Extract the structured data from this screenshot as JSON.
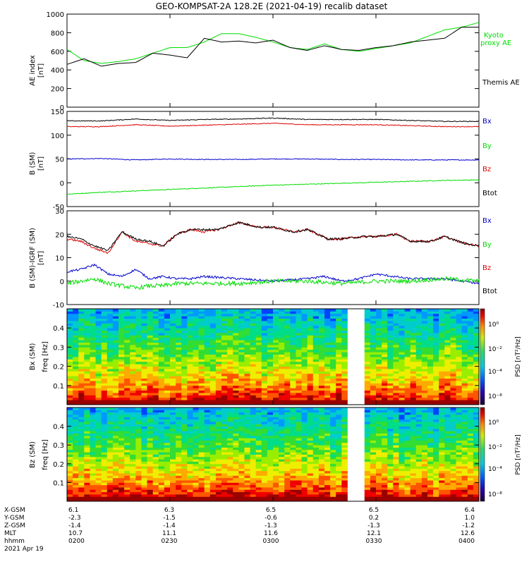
{
  "title": "GEO-KOMPSAT-2A 128.2E (2021-04-19) recalib dataset",
  "colors": {
    "black": "#000000",
    "green": "#00dd00",
    "red": "#dd0000",
    "blue": "#0000cc"
  },
  "chart_data": [
    {
      "type": "line",
      "ylabel": "AE index [nT]",
      "ylim": [
        0,
        1000
      ],
      "yticks": [
        0,
        200,
        400,
        600,
        800,
        1000
      ],
      "xlim_minutes": [
        0,
        120
      ],
      "series": [
        {
          "name": "Kyoto proxy AE",
          "color": "#00dd00",
          "x": [
            0,
            5,
            10,
            15,
            20,
            25,
            30,
            35,
            40,
            45,
            50,
            55,
            60,
            65,
            70,
            75,
            80,
            85,
            90,
            95,
            100,
            105,
            110,
            115,
            120
          ],
          "y": [
            620,
            500,
            470,
            490,
            520,
            580,
            640,
            640,
            700,
            790,
            790,
            750,
            700,
            640,
            620,
            680,
            620,
            600,
            630,
            660,
            690,
            760,
            830,
            860,
            910
          ]
        },
        {
          "name": "Themis AE",
          "color": "#000000",
          "x": [
            0,
            5,
            10,
            15,
            20,
            25,
            30,
            35,
            40,
            45,
            50,
            55,
            60,
            65,
            70,
            75,
            80,
            85,
            90,
            95,
            100,
            105,
            110,
            115,
            120
          ],
          "y": [
            460,
            520,
            440,
            470,
            480,
            580,
            560,
            530,
            740,
            700,
            710,
            690,
            720,
            640,
            610,
            660,
            620,
            610,
            640,
            660,
            700,
            720,
            740,
            860,
            860
          ]
        }
      ]
    },
    {
      "type": "line",
      "ylabel": "B_T (SM) [nT]",
      "ylim": [
        -50,
        150
      ],
      "yticks": [
        -50,
        0,
        50,
        100,
        150
      ],
      "xlim_minutes": [
        0,
        120
      ],
      "series": [
        {
          "name": "Bx",
          "color": "#0000cc",
          "x": [
            0,
            10,
            20,
            30,
            40,
            50,
            60,
            70,
            80,
            90,
            100,
            110,
            120
          ],
          "y": [
            50,
            51,
            48,
            50,
            49,
            49,
            50,
            50,
            49,
            49,
            48,
            48,
            48
          ]
        },
        {
          "name": "By",
          "color": "#00dd00",
          "x": [
            0,
            10,
            20,
            30,
            40,
            50,
            60,
            70,
            80,
            90,
            100,
            110,
            120
          ],
          "y": [
            -24,
            -20,
            -17,
            -14,
            -11,
            -8,
            -5,
            -3,
            -1,
            1,
            3,
            5,
            6
          ]
        },
        {
          "name": "Bz",
          "color": "#dd0000",
          "x": [
            0,
            10,
            20,
            30,
            40,
            50,
            60,
            70,
            80,
            90,
            100,
            110,
            120
          ],
          "y": [
            118,
            118,
            122,
            119,
            121,
            123,
            125,
            122,
            122,
            122,
            120,
            118,
            118
          ]
        },
        {
          "name": "Btot",
          "color": "#000000",
          "x": [
            0,
            10,
            20,
            30,
            40,
            50,
            60,
            70,
            80,
            90,
            100,
            110,
            120
          ],
          "y": [
            130,
            130,
            134,
            131,
            133,
            134,
            136,
            133,
            133,
            133,
            131,
            129,
            129
          ]
        }
      ]
    },
    {
      "type": "line",
      "ylabel": "B_T(SM)-IGRF (SM) [nT]",
      "ylim": [
        -10,
        30
      ],
      "yticks": [
        -10,
        0,
        10,
        20,
        30
      ],
      "xlim_minutes": [
        0,
        120
      ],
      "series": [
        {
          "name": "Bx",
          "color": "#0000cc",
          "x": [
            0,
            4,
            8,
            12,
            16,
            20,
            24,
            28,
            32,
            36,
            40,
            50,
            60,
            70,
            75,
            80,
            85,
            90,
            100,
            110,
            120
          ],
          "y": [
            4,
            5,
            7,
            3,
            2,
            5,
            1,
            2,
            1,
            1,
            2,
            1,
            0,
            1,
            2,
            0,
            1,
            3,
            1,
            1,
            -1
          ]
        },
        {
          "name": "By",
          "color": "#00dd00",
          "x": [
            0,
            4,
            8,
            12,
            16,
            20,
            24,
            28,
            32,
            40,
            50,
            60,
            70,
            80,
            90,
            100,
            110,
            120
          ],
          "y": [
            -1,
            0,
            1,
            -1,
            -2,
            -3,
            -2,
            -2,
            -1,
            -1,
            -1,
            0,
            0,
            -1,
            0,
            0,
            1,
            0
          ]
        },
        {
          "name": "Bz",
          "color": "#dd0000",
          "x": [
            0,
            4,
            8,
            12,
            16,
            20,
            24,
            28,
            32,
            36,
            40,
            44,
            50,
            56,
            60,
            66,
            70,
            76,
            80,
            86,
            90,
            96,
            100,
            106,
            110,
            116,
            120
          ],
          "y": [
            18,
            17,
            14,
            12,
            21,
            17,
            16,
            15,
            20,
            22,
            21,
            22,
            25,
            23,
            23,
            21,
            22,
            18,
            18,
            19,
            19,
            20,
            17,
            17,
            19,
            16,
            15
          ]
        },
        {
          "name": "Btot",
          "color": "#000000",
          "x": [
            0,
            4,
            8,
            12,
            16,
            20,
            24,
            28,
            32,
            36,
            40,
            44,
            50,
            56,
            60,
            66,
            70,
            76,
            80,
            86,
            90,
            96,
            100,
            106,
            110,
            116,
            120
          ],
          "y": [
            19,
            18,
            15,
            13,
            21,
            18,
            17,
            15,
            20,
            22,
            22,
            22,
            25,
            23,
            23,
            21,
            22,
            18,
            18,
            19,
            19,
            20,
            17,
            17,
            19,
            16,
            15
          ]
        }
      ]
    },
    {
      "type": "heatmap",
      "ylabel": "Bx (SM) freq [Hz]",
      "yticks": [
        0.1,
        0.2,
        0.3,
        0.4
      ],
      "ylim": [
        0,
        0.5
      ],
      "colorbar_label": "PSD [nT²/Hz]",
      "colorbar_ticks": [
        "10⁰",
        "10⁻²",
        "10⁻⁴",
        "10⁻⁸"
      ],
      "data_gap_minutes": [
        83,
        86
      ]
    },
    {
      "type": "heatmap",
      "ylabel": "Bz (SM) freq [Hz]",
      "yticks": [
        0.1,
        0.2,
        0.3,
        0.4
      ],
      "ylim": [
        0,
        0.5
      ],
      "colorbar_label": "PSD [nT²/Hz]",
      "colorbar_ticks": [
        "10⁰",
        "10⁻²",
        "10⁻⁴",
        "10⁻⁸"
      ],
      "data_gap_minutes": [
        83,
        86
      ]
    }
  ],
  "panel1_legend": {
    "kyoto": "Kyoto",
    "proxy": "proxy AE",
    "themis": "Themis AE"
  },
  "panel_legend": {
    "bx": "Bx",
    "by": "By",
    "bz": "Bz",
    "btot": "Btot"
  },
  "ylabels": {
    "p1": "AE index",
    "p1u": "[nT]",
    "p2": "B (SM)",
    "p2u": "[nT]",
    "p3": "B (SM)-IGRF (SM)",
    "p3u": "[nT]",
    "p4": "Bx (SM)",
    "p4u": "freq [Hz]",
    "p5": "Bz (SM)",
    "p5u": "freq [Hz]",
    "cb": "PSD [nT²/Hz]"
  },
  "orbit": {
    "labels": [
      "X-GSM",
      "Y-GSM",
      "Z-GSM",
      "MLT",
      "hhmm",
      "2021 Apr 19"
    ],
    "columns": [
      {
        "vals": [
          "6.1",
          "-2.3",
          "-1.4",
          "10.7",
          "0200"
        ]
      },
      {
        "vals": [
          "6.3",
          "-1.5",
          "-1.4",
          "11.1",
          "0230"
        ]
      },
      {
        "vals": [
          "6.5",
          "-0.6",
          "-1.3",
          "11.6",
          "0300"
        ]
      },
      {
        "vals": [
          "6.5",
          "0.2",
          "-1.3",
          "12.1",
          "0330"
        ]
      },
      {
        "vals": [
          "6.4",
          "1.0",
          "-1.2",
          "12.6",
          "0400"
        ]
      }
    ]
  }
}
